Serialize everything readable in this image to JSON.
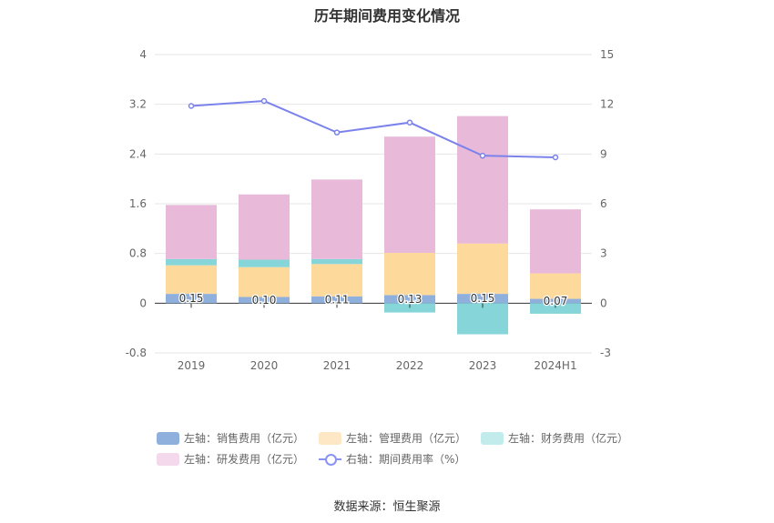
{
  "title": "历年期间费用变化情况",
  "source": "数据来源：恒生聚源",
  "chart_data": {
    "type": "bar",
    "categories": [
      "2019",
      "2020",
      "2021",
      "2022",
      "2023",
      "2024H1"
    ],
    "left_axis": {
      "ticks": [
        "4",
        "3.2",
        "2.4",
        "1.6",
        "0.8",
        "0",
        "-0.8"
      ],
      "ylim": [
        -0.8,
        4
      ]
    },
    "right_axis": {
      "ticks": [
        "15",
        "12",
        "9",
        "6",
        "3",
        "0",
        "-3"
      ],
      "ylim": [
        -3,
        15
      ]
    },
    "series": [
      {
        "name": "左轴：销售费用（亿元）",
        "type": "stacked-bar",
        "axis": "left",
        "color": "#8fb0dd",
        "values": [
          0.15,
          0.1,
          0.11,
          0.13,
          0.15,
          0.07
        ],
        "labels": [
          "0.15",
          "0.10",
          "0.11",
          "0.13",
          "0.15",
          "0.07"
        ]
      },
      {
        "name": "左轴：管理费用（亿元）",
        "type": "stacked-bar",
        "axis": "left",
        "color": "#fdd99b",
        "values": [
          0.46,
          0.48,
          0.52,
          0.68,
          0.81,
          0.41
        ]
      },
      {
        "name": "左轴：财务费用（亿元）",
        "type": "stacked-bar",
        "axis": "left",
        "color": "#86d6d9",
        "values": [
          0.1,
          0.12,
          0.08,
          -0.15,
          -0.5,
          -0.17
        ]
      },
      {
        "name": "左轴：研发费用（亿元）",
        "type": "stacked-bar",
        "axis": "left",
        "color": "#e8b9d9",
        "values": [
          0.87,
          1.05,
          1.28,
          1.87,
          2.05,
          1.03
        ]
      },
      {
        "name": "右轴：期间费用率（%）",
        "type": "line",
        "axis": "right",
        "color": "#7b83eb",
        "values": [
          11.9,
          12.2,
          10.3,
          10.9,
          8.9,
          8.8
        ]
      }
    ],
    "legend_swatch_colors": [
      "#8fb0dd",
      "#fde7c4",
      "#c2ebec",
      "#f4d9ec"
    ],
    "legend_position": "bottom",
    "grid": true
  }
}
